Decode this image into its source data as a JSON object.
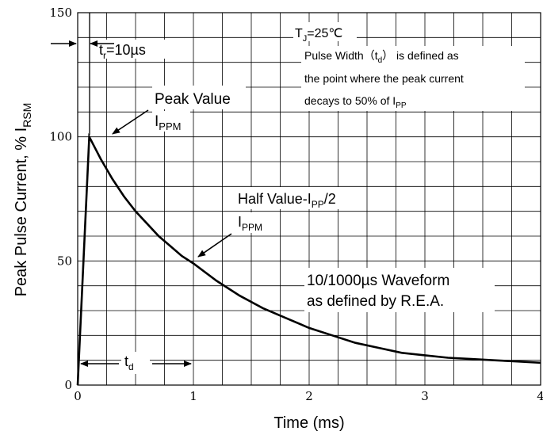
{
  "chart_data": {
    "type": "line",
    "title": "",
    "xlabel": "Time (ms)",
    "ylabel_main": "Peak Pulse Current, % I",
    "ylabel_sub": "RSM",
    "xlim": [
      0,
      4
    ],
    "ylim": [
      0,
      150
    ],
    "x_ticks": [
      "0",
      "1",
      "2",
      "3",
      "4"
    ],
    "y_ticks": [
      "0",
      "50",
      "100",
      "150"
    ],
    "grid": true,
    "x_grid_step": 0.25,
    "y_grid_step": 10,
    "series": [
      {
        "x": [
          0,
          0.1,
          0.2,
          0.3,
          0.4,
          0.5,
          0.6,
          0.7,
          0.8,
          0.9,
          1.0,
          1.2,
          1.4,
          1.6,
          1.8,
          2.0,
          2.2,
          2.4,
          2.6,
          2.8,
          3.0,
          3.2,
          3.4,
          3.6,
          3.8,
          4.0
        ],
        "y": [
          0,
          100,
          91,
          83,
          76,
          70,
          65,
          60,
          56,
          52,
          49,
          42,
          36,
          31,
          27,
          23,
          20,
          17,
          15,
          13,
          12,
          11,
          10.5,
          10,
          9.5,
          9
        ],
        "color": "#000000"
      }
    ],
    "annotations": {
      "tr_prefix": "t",
      "tr_sub": "r",
      "tr_value": "=10µs",
      "tj_prefix": "T",
      "tj_sub": "J",
      "tj_value": "=25℃",
      "pw_line1_pre": "Pulse Width（t",
      "pw_line1_sub": "d",
      "pw_line1_post": "） is defined as",
      "pw_line2": "the point where the peak current",
      "pw_line3_pre": "decays to 50% of I",
      "pw_line3_sub": "PP",
      "peak_value": "Peak Value",
      "peak_i": "I",
      "peak_i_sub": "PPM",
      "half_value_pre": "Half Value-I",
      "half_value_sub": "PP",
      "half_value_post": "/2",
      "half_i": "I",
      "half_i_sub": "PPM",
      "waveform_line1": "10/1000µs Waveform",
      "waveform_line2": "as defined by R.E.A.",
      "td_prefix": "t",
      "td_sub": "d"
    }
  }
}
